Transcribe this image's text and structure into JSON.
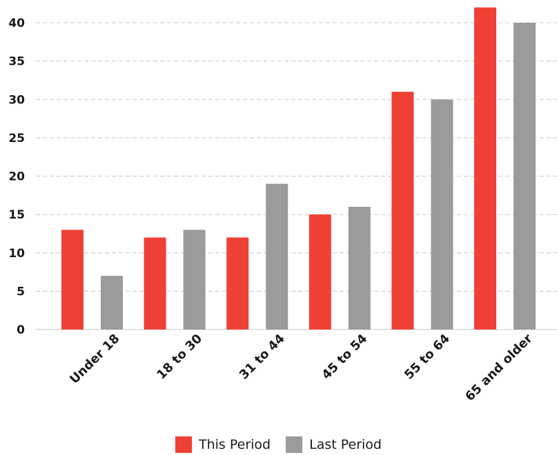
{
  "chart_data": {
    "type": "bar",
    "categories": [
      "Under 18",
      "18 to 30",
      "31 to 44",
      "45 to 54",
      "55 to 64",
      "65 and older"
    ],
    "series": [
      {
        "name": "This Period",
        "values": [
          13,
          12,
          12,
          15,
          31,
          42
        ],
        "color": "#ef4035"
      },
      {
        "name": "Last Period",
        "values": [
          7,
          13,
          19,
          16,
          30,
          40
        ],
        "color": "#9b9b9b"
      }
    ],
    "yticks": [
      "0",
      "5",
      "10",
      "15",
      "20",
      "25",
      "30",
      "35",
      "40"
    ],
    "ylim": [
      0,
      42
    ],
    "grid": true,
    "legend_position": "bottom-center"
  }
}
